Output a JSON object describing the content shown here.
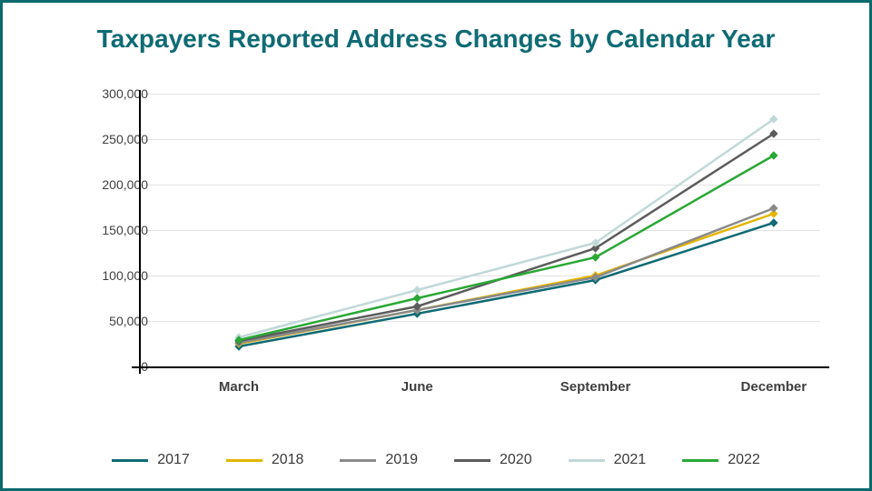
{
  "title": "Taxpayers Reported Address Changes by Calendar Year",
  "title_color": "#0f6b74",
  "title_fontsize": 28,
  "border_color": "#0a6a6e",
  "background_color": "#ffffff",
  "chart": {
    "type": "line",
    "categories": [
      "March",
      "June",
      "September",
      "December"
    ],
    "ylim": [
      0,
      300000
    ],
    "ytick_step": 50000,
    "ytick_labels": [
      "0",
      "50,000",
      "100,000",
      "150,000",
      "200,000",
      "250,000",
      "300,000"
    ],
    "grid_color": "#e3e3e3",
    "axis_color": "#000000",
    "xlabel_color": "#404040",
    "ylabel_color": "#404040",
    "ylabel_fontsize": 14,
    "xlabel_fontsize": 15,
    "line_width": 2.5,
    "marker_size": 4,
    "marker_style": "diamond",
    "series": [
      {
        "name": "2017",
        "color": "#0f6b74",
        "values": [
          22000,
          58000,
          95000,
          158000
        ]
      },
      {
        "name": "2018",
        "color": "#e4b500",
        "values": [
          25000,
          62000,
          100000,
          168000
        ]
      },
      {
        "name": "2019",
        "color": "#8a8a8a",
        "values": [
          26000,
          62000,
          98000,
          174000
        ]
      },
      {
        "name": "2020",
        "color": "#5c5c5c",
        "values": [
          28000,
          66000,
          130000,
          256000
        ]
      },
      {
        "name": "2021",
        "color": "#c1d8d8",
        "values": [
          32000,
          84000,
          136000,
          272000
        ]
      },
      {
        "name": "2022",
        "color": "#2aa836",
        "values": [
          29000,
          75000,
          120000,
          232000
        ]
      }
    ]
  },
  "legend_fontsize": 16,
  "legend_text_color": "#3a3a3a"
}
